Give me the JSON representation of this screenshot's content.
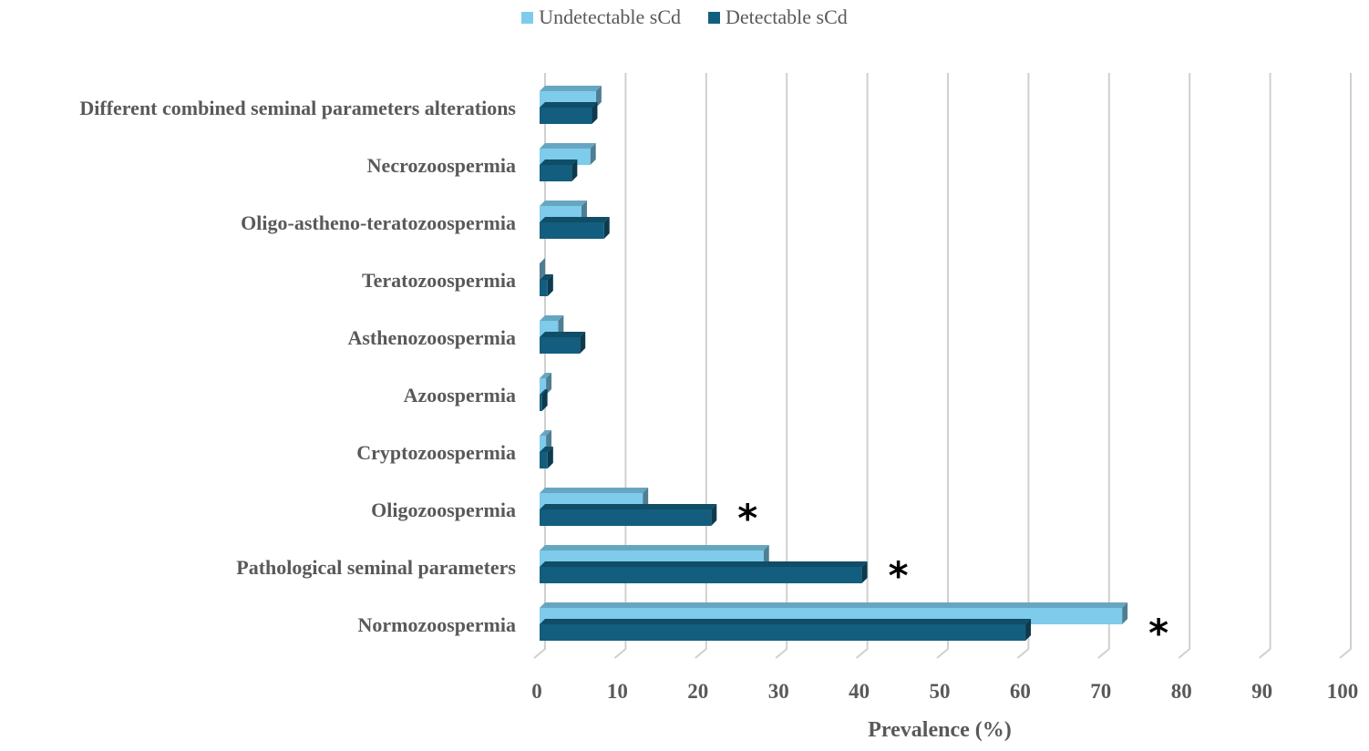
{
  "chart_data": {
    "type": "bar",
    "orientation": "horizontal",
    "categories": [
      "Different combined seminal parameters alterations",
      "Necrozoospermia",
      "Oligo-astheno-teratozoospermia",
      "Teratozoospermia",
      "Asthenozoospermia",
      "Azoospermia",
      "Cryptozoospermia",
      "Oligozoospermia",
      "Pathological seminal parameters",
      "Normozoospermia"
    ],
    "series": [
      {
        "name": "Undetectable sCd",
        "color": "#7ecbeb",
        "values": [
          7,
          6.3,
          5.2,
          0,
          2.3,
          0.8,
          0.8,
          12.8,
          27.8,
          72.3
        ]
      },
      {
        "name": "Detectable sCd",
        "color": "#135e7e",
        "values": [
          6.5,
          4,
          8,
          1,
          5,
          0.3,
          1,
          21.3,
          40,
          60.3
        ]
      }
    ],
    "annotations": [
      {
        "category": "Oligozoospermia",
        "text": "*"
      },
      {
        "category": "Pathological seminal parameters",
        "text": "*"
      },
      {
        "category": "Normozoospermia",
        "text": "*"
      }
    ],
    "xlabel": "Prevalence (%)",
    "xlim": [
      0,
      100
    ],
    "xticks": [
      "0",
      "10",
      "20",
      "30",
      "40",
      "50",
      "60",
      "70",
      "80",
      "90",
      "100"
    ],
    "grid": true,
    "legend_position": "top"
  }
}
